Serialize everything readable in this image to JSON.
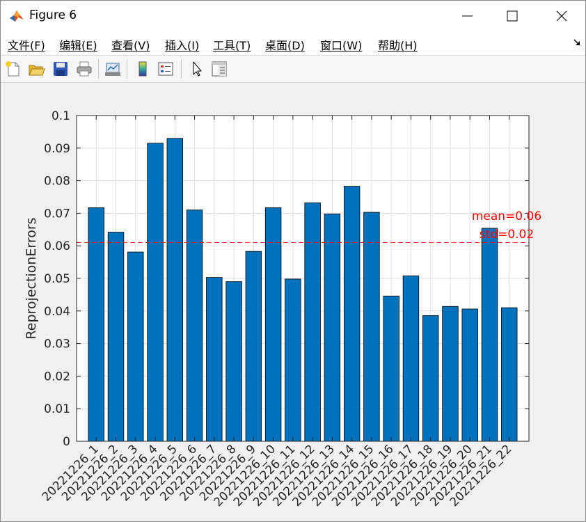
{
  "window": {
    "title": "Figure 6",
    "controls": {
      "minimize": "—",
      "maximize": "☐",
      "close": "✕"
    }
  },
  "menubar": {
    "items": [
      "文件(F)",
      "编辑(E)",
      "查看(V)",
      "插入(I)",
      "工具(T)",
      "桌面(D)",
      "窗口(W)",
      "帮助(H)"
    ]
  },
  "toolbar": {
    "buttons": [
      "new-figure-icon",
      "open-file-icon",
      "save-icon",
      "print-icon",
      "link-plot-icon",
      "colorbar-icon",
      "legend-icon",
      "pointer-icon",
      "property-editor-icon"
    ]
  },
  "colors": {
    "bar_fill": "#0072bd",
    "bar_edge": "#000000",
    "mean_line": "#ff0000",
    "annotation": "#ff0000",
    "grid": "#dfdfdf"
  },
  "chart_data": {
    "type": "bar",
    "categories": [
      "20221226_1",
      "20221226_2",
      "20221226_3",
      "20221226_4",
      "20221226_5",
      "20221226_6",
      "20221226_7",
      "20221226_8",
      "20221226_9",
      "20221226_10",
      "20221226_11",
      "20221226_12",
      "20221226_13",
      "20221226_14",
      "20221226_15",
      "20221226_16",
      "20221226_17",
      "20221226_18",
      "20221226_19",
      "20221226_20",
      "20221226_21",
      "20221226_22"
    ],
    "values": [
      0.0717,
      0.0642,
      0.0581,
      0.0915,
      0.093,
      0.071,
      0.0503,
      0.049,
      0.0583,
      0.0717,
      0.0498,
      0.0732,
      0.0698,
      0.0783,
      0.0703,
      0.0446,
      0.0508,
      0.0386,
      0.0414,
      0.0406,
      0.0654,
      0.041
    ],
    "title": "",
    "xlabel": "",
    "ylabel": "ReprojectionErrors",
    "ylim": [
      0,
      0.1
    ],
    "yticks": [
      0,
      0.01,
      0.02,
      0.03,
      0.04,
      0.05,
      0.06,
      0.07,
      0.08,
      0.09,
      0.1
    ],
    "ytick_labels": [
      "0",
      "0.01",
      "0.02",
      "0.03",
      "0.04",
      "0.05",
      "0.06",
      "0.07",
      "0.08",
      "0.09",
      "0.1"
    ],
    "grid": true,
    "mean_line": {
      "value": 0.061,
      "style": "dashed"
    },
    "annotations": [
      "mean=0.06",
      "std=0.02"
    ]
  }
}
